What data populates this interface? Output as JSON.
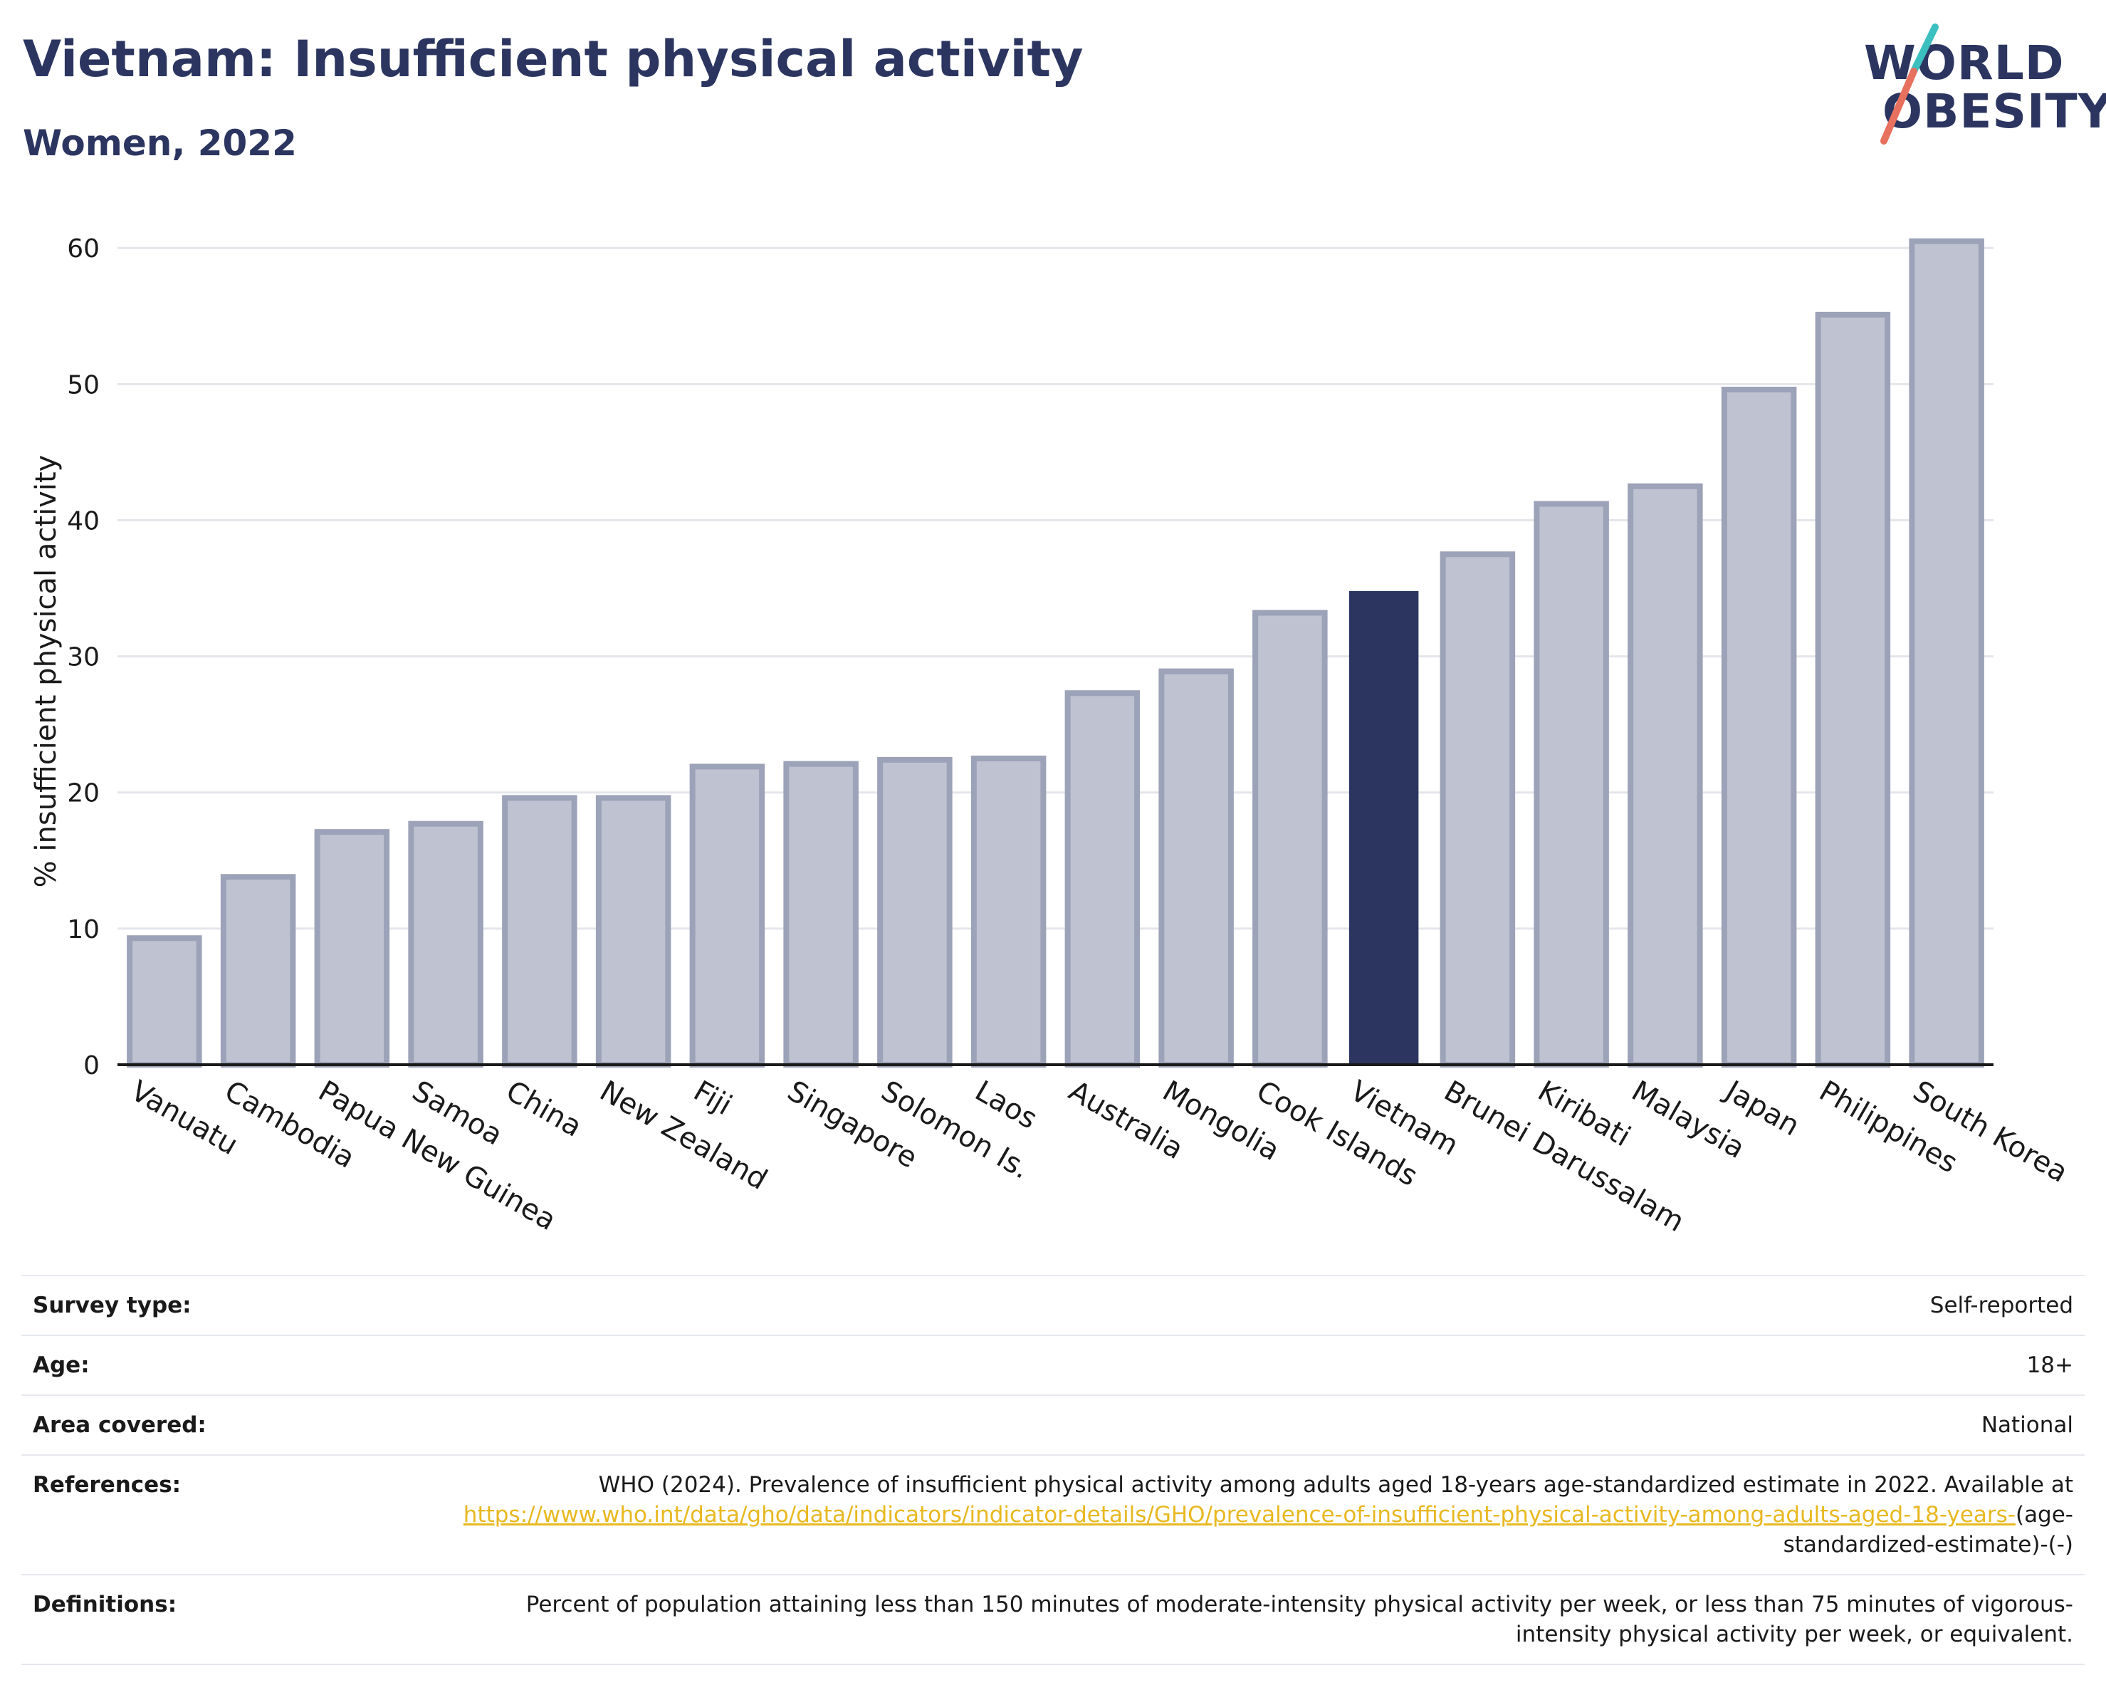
{
  "header": {
    "title": "Vietnam: Insufficient physical activity",
    "subtitle": "Women, 2022"
  },
  "logo": {
    "line1": "WORLD",
    "line2": "OBESITY",
    "color": "#2b3560",
    "slash_top_color": "#3bbfbf",
    "slash_bottom_color": "#e8705e"
  },
  "chart_data": {
    "type": "bar",
    "ylabel": "% insufficient physical activity",
    "xlabel": "",
    "ylim": [
      0,
      62
    ],
    "yticks": [
      0,
      10,
      20,
      30,
      40,
      50,
      60
    ],
    "grid": true,
    "categories": [
      "Vanuatu",
      "Cambodia",
      "Papua New Guinea",
      "Samoa",
      "China",
      "New Zealand",
      "Fiji",
      "Singapore",
      "Solomon Is.",
      "Laos",
      "Australia",
      "Mongolia",
      "Cook Islands",
      "Vietnam",
      "Brunei Darussalam",
      "Kiribati",
      "Malaysia",
      "Japan",
      "Philippines",
      "South Korea"
    ],
    "values": [
      9.3,
      13.8,
      17.1,
      17.7,
      19.6,
      19.6,
      21.9,
      22.1,
      22.4,
      22.5,
      27.3,
      28.9,
      33.2,
      34.8,
      37.5,
      41.2,
      42.5,
      49.6,
      55.1,
      60.5
    ],
    "highlight": "Vietnam",
    "colors": {
      "default_fill": "#bfc2d0",
      "default_stroke": "#9ca2b8",
      "highlight_fill": "#2b3560"
    }
  },
  "meta": {
    "survey_type_label": "Survey type:",
    "survey_type_value": "Self-reported",
    "age_label": "Age:",
    "age_value": "18+",
    "area_label": "Area covered:",
    "area_value": "National",
    "references_label": "References:",
    "references_text": "WHO (2024). Prevalence of insufficient physical activity among adults aged 18-years age-standardized estimate in 2022. Available at",
    "references_link": "https://www.who.int/data/gho/data/indicators/indicator-details/GHO/prevalence-of-insufficient-physical-activity-among-adults-aged-18-years-",
    "references_suffix": "(age-standardized-estimate)-(-)",
    "definitions_label": "Definitions:",
    "definitions_value": "Percent of population attaining less than 150 minutes of moderate-intensity physical activity per week, or less than 75 minutes of vigorous-intensity physical activity per week, or equivalent."
  }
}
